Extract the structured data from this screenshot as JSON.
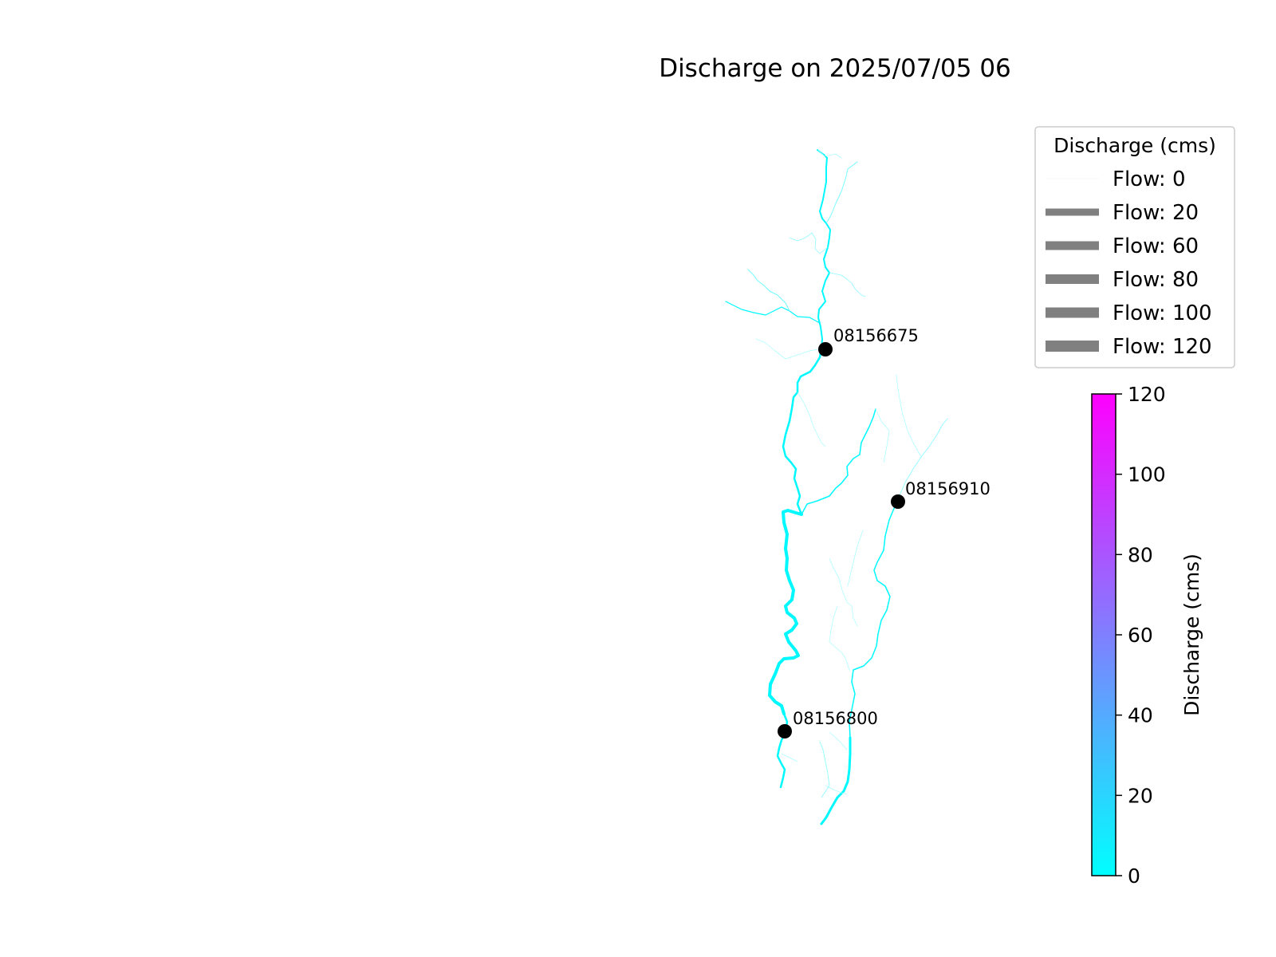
{
  "title": "Discharge on 2025/07/05 06",
  "colors": {
    "river_low": "#00f8ff",
    "river_mid": "#33c8ff",
    "legend_line": "#808080",
    "gauge": "#000000",
    "colormap": [
      "#00ffff",
      "#3ac3ff",
      "#6b91ff",
      "#9a62ff",
      "#cc33ff",
      "#ff00ff"
    ]
  },
  "gauges": [
    {
      "id": "08156675",
      "icon": "gauge-marker-icon"
    },
    {
      "id": "08156910",
      "icon": "gauge-marker-icon"
    },
    {
      "id": "08156800",
      "icon": "gauge-marker-icon"
    }
  ],
  "legend": {
    "title": "Discharge (cms)",
    "entries": [
      {
        "label": "Flow: 0",
        "flow": 0
      },
      {
        "label": "Flow: 20",
        "flow": 20
      },
      {
        "label": "Flow: 60",
        "flow": 60
      },
      {
        "label": "Flow: 80",
        "flow": 80
      },
      {
        "label": "Flow: 100",
        "flow": 100
      },
      {
        "label": "Flow: 120",
        "flow": 120
      }
    ]
  },
  "colorbar": {
    "label": "Discharge (cms)",
    "min": 0,
    "max": 120,
    "ticks": [
      "0",
      "20",
      "40",
      "60",
      "80",
      "100",
      "120"
    ]
  }
}
